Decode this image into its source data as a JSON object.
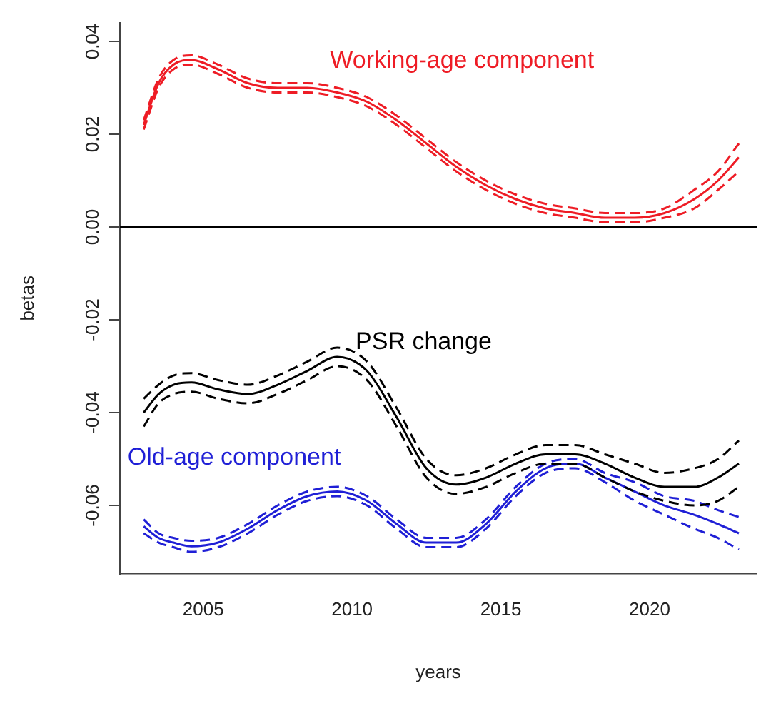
{
  "chart_data": {
    "type": "line",
    "xlabel": "years",
    "ylabel": "betas",
    "x": [
      2003,
      2003.5,
      2004,
      2004.6,
      2005.5,
      2006.5,
      2007.5,
      2008.5,
      2009.5,
      2010.5,
      2011.5,
      2012.5,
      2013.5,
      2014.5,
      2015.5,
      2016.5,
      2017.5,
      2018.5,
      2019.5,
      2020.5,
      2021.5,
      2022.3,
      2023
    ],
    "series": [
      {
        "name": "Working-age component",
        "color": "#ee1c25",
        "values": [
          0.022,
          0.031,
          0.035,
          0.036,
          0.034,
          0.031,
          0.03,
          0.03,
          0.029,
          0.027,
          0.023,
          0.018,
          0.013,
          0.009,
          0.006,
          0.004,
          0.003,
          0.002,
          0.002,
          0.003,
          0.006,
          0.01,
          0.015
        ]
      },
      {
        "color": "#ee1c25",
        "line_style": "dashed",
        "values": [
          0.021,
          0.03,
          0.034,
          0.035,
          0.033,
          0.03,
          0.029,
          0.029,
          0.028,
          0.026,
          0.022,
          0.017,
          0.012,
          0.008,
          0.005,
          0.003,
          0.002,
          0.001,
          0.001,
          0.002,
          0.004,
          0.008,
          0.012
        ]
      },
      {
        "color": "#ee1c25",
        "line_style": "dashed",
        "values": [
          0.023,
          0.032,
          0.036,
          0.037,
          0.035,
          0.032,
          0.031,
          0.031,
          0.03,
          0.028,
          0.024,
          0.019,
          0.014,
          0.01,
          0.007,
          0.005,
          0.004,
          0.003,
          0.003,
          0.004,
          0.008,
          0.012,
          0.018
        ]
      },
      {
        "name": "PSR change",
        "color": "#000000",
        "values": [
          -0.04,
          -0.036,
          -0.034,
          -0.0335,
          -0.035,
          -0.036,
          -0.034,
          -0.031,
          -0.028,
          -0.031,
          -0.041,
          -0.052,
          -0.0555,
          -0.054,
          -0.051,
          -0.049,
          -0.049,
          -0.051,
          -0.054,
          -0.056,
          -0.056,
          -0.054,
          -0.051
        ]
      },
      {
        "color": "#000000",
        "line_style": "dashed",
        "values": [
          -0.043,
          -0.038,
          -0.036,
          -0.0355,
          -0.037,
          -0.038,
          -0.036,
          -0.033,
          -0.03,
          -0.033,
          -0.043,
          -0.054,
          -0.0575,
          -0.056,
          -0.053,
          -0.051,
          -0.051,
          -0.054,
          -0.057,
          -0.059,
          -0.06,
          -0.059,
          -0.056
        ]
      },
      {
        "color": "#000000",
        "line_style": "dashed",
        "values": [
          -0.037,
          -0.034,
          -0.032,
          -0.0315,
          -0.033,
          -0.034,
          -0.032,
          -0.029,
          -0.026,
          -0.029,
          -0.039,
          -0.05,
          -0.0535,
          -0.052,
          -0.049,
          -0.047,
          -0.047,
          -0.049,
          -0.051,
          -0.053,
          -0.052,
          -0.05,
          -0.046
        ]
      },
      {
        "name": "Old-age component",
        "color": "#1f1fd6",
        "values": [
          -0.0645,
          -0.067,
          -0.068,
          -0.0688,
          -0.068,
          -0.065,
          -0.061,
          -0.058,
          -0.057,
          -0.059,
          -0.064,
          -0.068,
          -0.068,
          -0.064,
          -0.057,
          -0.052,
          -0.051,
          -0.054,
          -0.057,
          -0.06,
          -0.062,
          -0.064,
          -0.066
        ]
      },
      {
        "color": "#1f1fd6",
        "line_style": "dashed",
        "values": [
          -0.066,
          -0.068,
          -0.069,
          -0.07,
          -0.069,
          -0.066,
          -0.062,
          -0.059,
          -0.058,
          -0.06,
          -0.065,
          -0.069,
          -0.069,
          -0.065,
          -0.058,
          -0.053,
          -0.052,
          -0.055,
          -0.059,
          -0.062,
          -0.065,
          -0.067,
          -0.0695
        ]
      },
      {
        "color": "#1f1fd6",
        "line_style": "dashed",
        "values": [
          -0.063,
          -0.066,
          -0.067,
          -0.0676,
          -0.067,
          -0.064,
          -0.06,
          -0.057,
          -0.056,
          -0.058,
          -0.063,
          -0.067,
          -0.067,
          -0.063,
          -0.056,
          -0.051,
          -0.05,
          -0.053,
          -0.055,
          -0.058,
          -0.059,
          -0.061,
          -0.0625
        ]
      }
    ],
    "xlim": [
      2002.2,
      2023.6
    ],
    "xticks": [
      2005,
      2010,
      2015,
      2020
    ],
    "ylim": [
      -0.0747,
      0.044
    ],
    "yticks": [
      -0.06,
      -0.04,
      -0.02,
      {
        "value": 0,
        "label": "0.00"
      },
      0.02,
      0.04
    ],
    "ref_lines": [
      {
        "axis": "y",
        "value": 0,
        "color": "#000000"
      }
    ],
    "grid": false,
    "legend": false,
    "marker": "none",
    "line_style": "solid"
  }
}
